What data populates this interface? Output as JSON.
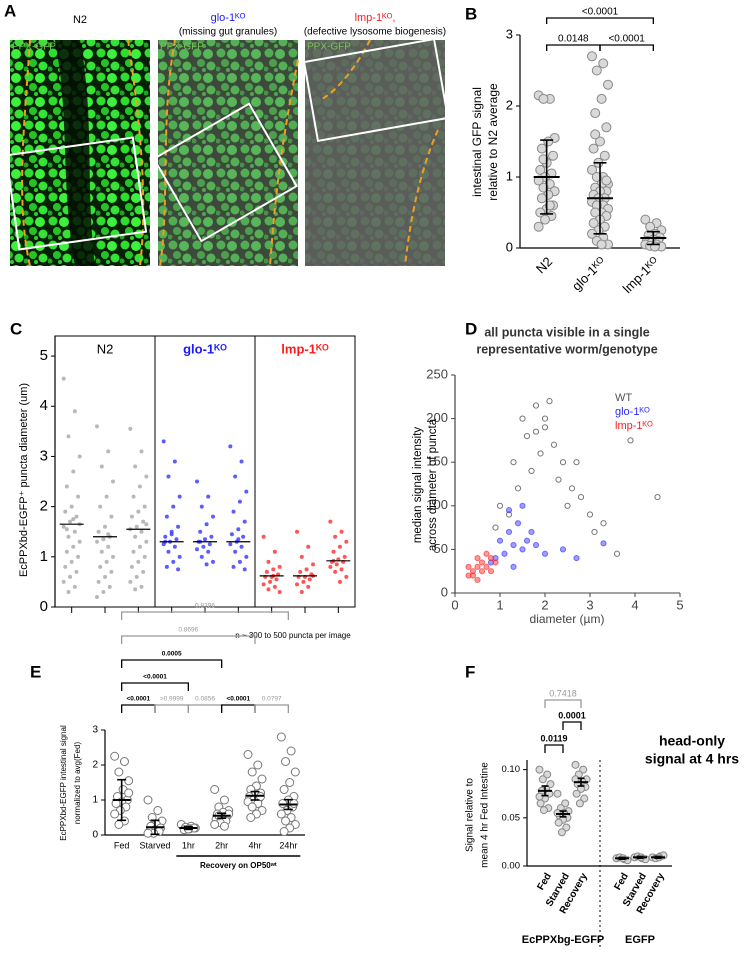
{
  "figure_a": {
    "panel": "A",
    "images": [
      {
        "title": "N2",
        "color": "#000000",
        "overlay": "PPX-GFP"
      },
      {
        "title": "glo-1ᴷᴼ",
        "subtitle": "(missing gut granules)",
        "color": "#1a1aff",
        "overlay": "PPX-GFP"
      },
      {
        "title": "lmp-1ᴷᴼ,",
        "subtitle": "(defective lysosome biogenesis)",
        "color": "#ff1a1a",
        "overlay": "PPX-GFP"
      }
    ]
  },
  "chart_data": [
    {
      "panel": "B",
      "type": "strip",
      "ylabel": [
        "intestinal GFP signal",
        "relative to N2 average"
      ],
      "categories": [
        "N2",
        "glo-1ᴷᴼ",
        "lmp-1ᴷᴼ"
      ],
      "points": [
        [
          2.15,
          2.1,
          2.1,
          1.55,
          1.5,
          1.4,
          1.3,
          1.2,
          1.1,
          1.05,
          1.0,
          0.95,
          0.9,
          0.85,
          0.8,
          0.75,
          0.7,
          0.6,
          0.55,
          0.5,
          0.45,
          0.4,
          0.3,
          0.6,
          1.25
        ],
        [
          2.7,
          2.6,
          2.5,
          2.3,
          2.1,
          1.9,
          1.7,
          1.5,
          1.4,
          1.3,
          1.2,
          1.1,
          1.0,
          1.0,
          0.9,
          0.9,
          0.85,
          0.8,
          0.8,
          0.75,
          0.7,
          0.7,
          0.65,
          0.6,
          0.6,
          0.55,
          0.5,
          0.5,
          0.45,
          0.4,
          0.35,
          0.3,
          0.25,
          0.2,
          0.15,
          0.1,
          0.05,
          0.05,
          1.6,
          0.95
        ],
        [
          0.4,
          0.35,
          0.3,
          0.25,
          0.2,
          0.18,
          0.15,
          0.12,
          0.1,
          0.1,
          0.08,
          0.05,
          0.05,
          0.03,
          0.02,
          0.02
        ]
      ],
      "means": [
        1.0,
        0.7,
        0.14
      ],
      "errors": [
        0.52,
        0.5,
        0.09
      ],
      "point_fill": "#d9d9d9",
      "point_stroke": "#888888",
      "ylim": [
        0,
        3
      ],
      "yticks": [
        0,
        1,
        2,
        3
      ],
      "comparisons": [
        {
          "pair": [
            0,
            2
          ],
          "label": "<0.0001",
          "color": "#000000"
        },
        {
          "pair": [
            0,
            1
          ],
          "label": "0.0148",
          "color": "#000000"
        },
        {
          "pair": [
            1,
            2
          ],
          "label": "<0.0001",
          "color": "#000000"
        }
      ]
    },
    {
      "panel": "C",
      "type": "grouped-strip",
      "ylabel": [
        "EcPPXbd-EGFP⁺ puncta diameter (um)"
      ],
      "note": "n ~ 300 to 500 puncta per image",
      "ylim": [
        0,
        5.4
      ],
      "yticks": [
        0,
        1,
        2,
        3,
        4,
        5
      ],
      "groups": [
        {
          "name": "N2",
          "color": "#000000",
          "point_color": "#a6a6a6",
          "medians": [
            1.65,
            1.4,
            1.55
          ],
          "columns": [
            [
              4.55,
              3.9,
              3.4,
              3.0,
              2.7,
              2.4,
              2.2,
              2.0,
              1.9,
              1.8,
              1.7,
              1.6,
              1.5,
              1.4,
              1.3,
              1.2,
              1.1,
              1.0,
              0.9,
              0.8,
              0.7,
              0.6,
              0.5,
              0.4,
              0.3,
              1.65,
              1.75,
              1.55
            ],
            [
              3.6,
              3.1,
              2.8,
              2.5,
              2.2,
              2.0,
              1.8,
              1.6,
              1.5,
              1.4,
              1.35,
              1.3,
              1.2,
              1.1,
              1.0,
              0.9,
              0.8,
              0.7,
              0.6,
              0.5,
              0.4,
              0.3,
              0.2,
              1.45
            ],
            [
              3.55,
              3.1,
              2.8,
              2.6,
              2.4,
              2.2,
              2.0,
              1.9,
              1.8,
              1.7,
              1.6,
              1.55,
              1.5,
              1.4,
              1.3,
              1.2,
              1.1,
              1.0,
              0.9,
              0.8,
              0.7,
              0.6,
              0.5,
              0.4,
              0.35,
              1.65
            ]
          ]
        },
        {
          "name": "glo-1ᴷᴼ",
          "color": "#1a1aff",
          "point_color": "#3333ff",
          "medians": [
            1.3,
            1.3,
            1.3
          ],
          "columns": [
            [
              3.3,
              2.9,
              2.6,
              2.2,
              2.0,
              1.8,
              1.6,
              1.5,
              1.4,
              1.35,
              1.3,
              1.25,
              1.2,
              1.1,
              1.0,
              0.9,
              0.8,
              0.75,
              1.45,
              1.3
            ],
            [
              2.5,
              2.2,
              2.0,
              1.8,
              1.65,
              1.5,
              1.4,
              1.35,
              1.3,
              1.25,
              1.2,
              1.15,
              1.1,
              1.0,
              0.9,
              0.85,
              1.3
            ],
            [
              3.2,
              2.9,
              2.6,
              2.3,
              2.1,
              1.9,
              1.7,
              1.55,
              1.45,
              1.4,
              1.3,
              1.25,
              1.2,
              1.1,
              1.0,
              0.9,
              0.8,
              0.75,
              1.35
            ]
          ]
        },
        {
          "name": "lmp-1ᴷᴼ",
          "color": "#ff1a1a",
          "point_color": "#ff2a2a",
          "medians": [
            0.62,
            0.62,
            0.92
          ],
          "columns": [
            [
              1.4,
              1.1,
              0.9,
              0.8,
              0.75,
              0.7,
              0.65,
              0.6,
              0.6,
              0.55,
              0.5,
              0.45,
              0.4,
              0.35,
              0.3,
              0.62
            ],
            [
              1.5,
              1.2,
              1.0,
              0.85,
              0.75,
              0.7,
              0.65,
              0.6,
              0.6,
              0.55,
              0.5,
              0.45,
              0.4,
              0.3,
              0.62
            ],
            [
              1.7,
              1.5,
              1.4,
              1.3,
              1.2,
              1.1,
              1.0,
              0.95,
              0.9,
              0.9,
              0.85,
              0.8,
              0.75,
              0.7,
              0.6,
              0.5,
              0.92
            ]
          ]
        }
      ]
    },
    {
      "panel": "D",
      "type": "scatter",
      "title": [
        "all puncta visible in a single",
        "representative worm/genotype"
      ],
      "xlabel": "diameter (µm)",
      "ylabel": [
        "median signal intensity",
        "across diameter of puncta"
      ],
      "xlim": [
        0,
        5
      ],
      "xticks": [
        0,
        1,
        2,
        3,
        4,
        5
      ],
      "ylim": [
        0,
        250
      ],
      "yticks": [
        0,
        50,
        100,
        150,
        200,
        250
      ],
      "legend": "top-right",
      "series": [
        {
          "name": "WT",
          "color": "#555555",
          "filled": false,
          "x": [
            1.5,
            1.8,
            2.0,
            2.2,
            1.6,
            1.9,
            2.4,
            2.6,
            1.3,
            1.7,
            2.1,
            2.8,
            3.0,
            3.3,
            3.6,
            4.5,
            3.9,
            1.0,
            1.4,
            2.3,
            2.5,
            1.2,
            0.9,
            2.0,
            1.8,
            2.7,
            3.1
          ],
          "y": [
            200,
            215,
            190,
            170,
            180,
            160,
            150,
            120,
            150,
            140,
            220,
            110,
            90,
            80,
            45,
            110,
            175,
            100,
            120,
            130,
            100,
            90,
            75,
            200,
            185,
            150,
            70
          ]
        },
        {
          "name": "glo-1ᴷᴼ",
          "color": "#2b2bff",
          "filled": true,
          "x": [
            1.0,
            1.2,
            1.3,
            1.5,
            1.1,
            0.9,
            1.4,
            1.6,
            1.8,
            2.0,
            0.8,
            1.2,
            1.7,
            2.4,
            2.7,
            3.3,
            1.3,
            1.5
          ],
          "y": [
            60,
            70,
            55,
            50,
            45,
            40,
            80,
            60,
            55,
            45,
            35,
            95,
            70,
            50,
            40,
            57,
            30,
            100
          ]
        },
        {
          "name": "lmp-1ᴷᴼ",
          "color": "#ff2020",
          "filled": true,
          "x": [
            0.3,
            0.4,
            0.5,
            0.6,
            0.7,
            0.8,
            0.5,
            0.6,
            0.4,
            0.7,
            0.9,
            0.3,
            0.5,
            0.8
          ],
          "y": [
            20,
            25,
            30,
            35,
            30,
            40,
            15,
            25,
            20,
            45,
            35,
            30,
            40,
            25
          ]
        }
      ]
    },
    {
      "panel": "E",
      "type": "strip",
      "ylabel": [
        "EcPPXbd-EGFP intestinal signal",
        "normalized to avg(Fed)"
      ],
      "categories": [
        "Fed",
        "Starved",
        "1hr",
        "2hr",
        "4hr",
        "24hr"
      ],
      "points": [
        [
          2.25,
          2.1,
          1.8,
          1.55,
          1.3,
          1.1,
          1.0,
          0.95,
          0.9,
          0.8,
          0.7,
          0.6,
          0.4,
          0.3,
          1.2
        ],
        [
          1.0,
          0.7,
          0.5,
          0.4,
          0.3,
          0.25,
          0.2,
          0.15,
          0.1,
          0.1,
          0.05,
          0.05
        ],
        [
          0.3,
          0.25,
          0.22,
          0.2,
          0.18,
          0.15,
          0.2,
          0.17
        ],
        [
          1.3,
          1.0,
          0.8,
          0.7,
          0.65,
          0.6,
          0.55,
          0.5,
          0.45,
          0.4,
          0.35,
          0.3,
          0.25,
          0.55,
          0.6
        ],
        [
          2.3,
          2.0,
          1.8,
          1.6,
          1.4,
          1.3,
          1.2,
          1.15,
          1.1,
          1.05,
          1.0,
          0.95,
          0.9,
          0.8,
          0.7,
          0.6,
          0.5,
          1.1
        ],
        [
          2.8,
          2.4,
          2.1,
          1.8,
          1.5,
          1.3,
          1.1,
          1.0,
          0.9,
          0.8,
          0.7,
          0.6,
          0.5,
          0.4,
          0.3,
          0.2,
          0.1,
          0.9
        ]
      ],
      "means": [
        1.0,
        0.22,
        0.2,
        0.55,
        1.12,
        0.87
      ],
      "errors": [
        0.58,
        0.2,
        0.04,
        0.07,
        0.12,
        0.14
      ],
      "point_fill": "#ffffff",
      "point_stroke": "#777777",
      "ylim": [
        0,
        3
      ],
      "yticks": [
        0,
        1,
        2,
        3
      ],
      "group": {
        "label": "Recovery on OP50ʷᵗ",
        "span": [
          2,
          5
        ]
      },
      "comparisons": [
        {
          "pair": [
            0,
            1
          ],
          "label": "<0.0001",
          "color": "#000000",
          "bold": true
        },
        {
          "pair": [
            1,
            2
          ],
          "label": ">0.9999",
          "color": "#999999",
          "bold": false
        },
        {
          "pair": [
            2,
            3
          ],
          "label": "0.0856",
          "color": "#999999",
          "bold": false
        },
        {
          "pair": [
            3,
            4
          ],
          "label": "<0.0001",
          "color": "#000000",
          "bold": true
        },
        {
          "pair": [
            4,
            5
          ],
          "label": "0.0797",
          "color": "#999999",
          "bold": false
        },
        {
          "pair": [
            0,
            2
          ],
          "label": "<0.0001",
          "color": "#000000",
          "bold": true
        },
        {
          "pair": [
            0,
            3
          ],
          "label": "0.0005",
          "color": "#000000",
          "bold": true
        },
        {
          "pair": [
            0,
            4
          ],
          "label": "0.8696",
          "color": "#999999",
          "bold": false
        },
        {
          "pair": [
            0,
            5
          ],
          "label": "0.8296",
          "color": "#999999",
          "bold": false
        }
      ]
    },
    {
      "panel": "F",
      "type": "strip",
      "ylabel": [
        "Signal relative to",
        "mean 4 hr Fed Intestine"
      ],
      "categories": [
        "Fed",
        "Starved",
        "Recovery",
        "Fed",
        "Starved",
        "Recovery"
      ],
      "points": [
        [
          0.1,
          0.095,
          0.09,
          0.085,
          0.08,
          0.078,
          0.075,
          0.07,
          0.065,
          0.06,
          0.058,
          0.072
        ],
        [
          0.075,
          0.065,
          0.06,
          0.057,
          0.055,
          0.052,
          0.05,
          0.048,
          0.045,
          0.04,
          0.035,
          0.055
        ],
        [
          0.105,
          0.1,
          0.095,
          0.09,
          0.088,
          0.085,
          0.082,
          0.08,
          0.075,
          0.07,
          0.065,
          0.09
        ],
        [
          0.008,
          0.007,
          0.009,
          0.006,
          0.008
        ],
        [
          0.009,
          0.008,
          0.01,
          0.007,
          0.009
        ],
        [
          0.009,
          0.01,
          0.008,
          0.011,
          0.009
        ]
      ],
      "means": [
        0.078,
        0.054,
        0.087,
        0.008,
        0.009,
        0.009
      ],
      "errors": [
        0.005,
        0.003,
        0.004,
        0.001,
        0.001,
        0.001
      ],
      "point_fill": "#d9d9d9",
      "point_stroke": "#888888",
      "ylim": [
        0,
        0.11
      ],
      "yticks": [
        {
          "value": 0,
          "label": "0.00"
        },
        {
          "value": 0.05,
          "label": "0.05"
        },
        {
          "value": 0.1,
          "label": "0.10"
        }
      ],
      "group_labels": [
        {
          "label": "EcPPXbg-EGFP",
          "span": [
            0,
            2
          ]
        },
        {
          "label": "EGFP",
          "span": [
            3,
            5
          ]
        }
      ],
      "annotation": [
        "head-only",
        "signal at 4 hrs"
      ],
      "comparisons": [
        {
          "pair": [
            0,
            1
          ],
          "label": "0.0119",
          "color": "#000000",
          "bold": true
        },
        {
          "pair": [
            1,
            2
          ],
          "label": "0.0001",
          "color": "#000000",
          "bold": true
        },
        {
          "pair": [
            0,
            2
          ],
          "label": "0.7418",
          "color": "#999999",
          "bold": false
        }
      ]
    }
  ]
}
